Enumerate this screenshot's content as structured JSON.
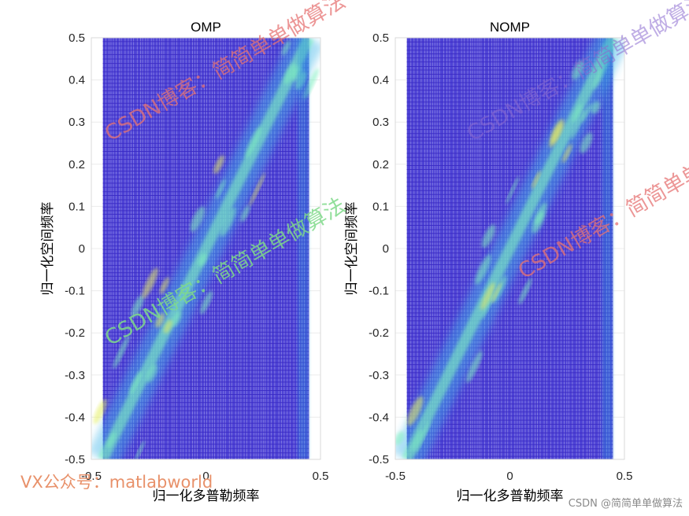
{
  "chart_data": [
    {
      "type": "heatmap",
      "title": "OMP",
      "xlabel": "归一化多普勒频率",
      "ylabel": "归一化空间频率",
      "xlim": [
        -0.5,
        0.5
      ],
      "ylim": [
        -0.5,
        0.5
      ],
      "xticks": [
        "-0.5",
        "0",
        "0.5"
      ],
      "yticks": [
        "-0.5",
        "-0.4",
        "-0.3",
        "-0.2",
        "-0.1",
        "0",
        "0.1",
        "0.2",
        "0.3",
        "0.4",
        "0.5"
      ],
      "doppler_extent": [
        -0.45,
        0.45
      ],
      "grid": true,
      "ridge": {
        "doppler": [
          -0.45,
          0.45
        ],
        "spatial": [
          -0.5,
          0.5
        ]
      }
    },
    {
      "type": "heatmap",
      "title": "NOMP",
      "xlabel": "归一化多普勒频率",
      "ylabel": "归一化空间频率",
      "xlim": [
        -0.5,
        0.5
      ],
      "ylim": [
        -0.5,
        0.5
      ],
      "xticks": [
        "-0.5",
        "0",
        "0.5"
      ],
      "yticks": [
        "-0.5",
        "-0.4",
        "-0.3",
        "-0.2",
        "-0.1",
        "0",
        "0.1",
        "0.2",
        "0.3",
        "0.4",
        "0.5"
      ],
      "doppler_extent": [
        -0.45,
        0.45
      ],
      "grid": true,
      "ridge": {
        "doppler": [
          -0.45,
          0.45
        ],
        "spatial": [
          -0.5,
          0.5
        ]
      }
    }
  ],
  "colors": {
    "surface_base": "#3b2fd0",
    "surface_line": "#3a2ac4",
    "ridge": "#7ff0c0",
    "ridge_peak": "#e8f060",
    "watermark_red": "#e67373",
    "watermark_green": "#7fd98a",
    "watermark_orange": "#e8916a"
  },
  "watermarks": {
    "blog": "CSDN博客：简简单单做算法",
    "vx": "VX公众号：matlabworld",
    "credit": "CSDN @简简单单做算法"
  }
}
